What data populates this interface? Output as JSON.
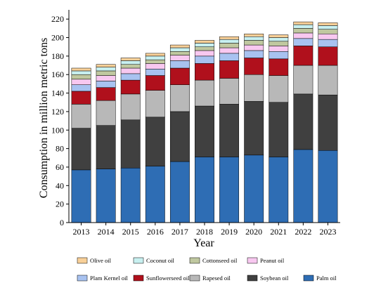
{
  "chart_data": {
    "type": "bar",
    "stacked": true,
    "title": "",
    "xlabel": "Year",
    "ylabel": "Consumption in million metric tons",
    "ylim": [
      0,
      230
    ],
    "yticks": [
      0,
      20,
      40,
      60,
      80,
      100,
      120,
      140,
      160,
      180,
      200,
      220
    ],
    "grid": false,
    "legend_placement": "bottom",
    "categories": [
      "2013",
      "2014",
      "2015",
      "2016",
      "2017",
      "2018",
      "2019",
      "2020",
      "2021",
      "2022",
      "2023"
    ],
    "series": [
      {
        "name": "Palm oil",
        "color": "#2e6db4",
        "values": [
          57,
          58,
          59,
          61,
          66,
          71,
          71,
          73,
          71,
          79,
          78
        ]
      },
      {
        "name": "Soybean oil",
        "color": "#404040",
        "values": [
          45,
          47,
          52,
          53,
          54,
          55,
          57,
          58,
          59,
          60,
          60
        ]
      },
      {
        "name": "Rapesed oil",
        "color": "#b8b8b8",
        "values": [
          26,
          27,
          28,
          29,
          29,
          28,
          28,
          29,
          29,
          31,
          32
        ]
      },
      {
        "name": "Sunflowerseed oil",
        "color": "#b0101c",
        "values": [
          14,
          14,
          15,
          16,
          18,
          18,
          19,
          18,
          18,
          21,
          20
        ]
      },
      {
        "name": "Plam Kernel oil",
        "color": "#a8c2f0",
        "values": [
          7,
          7,
          7,
          7,
          8,
          8,
          8,
          8,
          8,
          8,
          8
        ]
      },
      {
        "name": "Peanut oil",
        "color": "#f8c8f0",
        "values": [
          6,
          6,
          6,
          6,
          6,
          6,
          6,
          6,
          6,
          6,
          6
        ]
      },
      {
        "name": "Cottonseed oil",
        "color": "#c0c8a0",
        "values": [
          5,
          5,
          4,
          4,
          4,
          4,
          5,
          5,
          5,
          5,
          5
        ]
      },
      {
        "name": "Coconut oil",
        "color": "#c8f0f0",
        "values": [
          4,
          4,
          4,
          4,
          4,
          4,
          4,
          4,
          4,
          4,
          4
        ]
      },
      {
        "name": "Olive oil",
        "color": "#f8d098",
        "values": [
          3,
          3,
          3,
          3,
          3,
          3,
          3,
          3,
          3,
          3,
          3
        ]
      }
    ],
    "legend_rows": [
      [
        "Olive oil",
        "Coconut oil",
        "Cottonseed oil",
        "Peanut oil"
      ],
      [
        "Plam Kernel oil",
        "Sunflowerseed oil",
        "Rapesed oil",
        "Soybean oil",
        "Palm oil"
      ]
    ]
  }
}
